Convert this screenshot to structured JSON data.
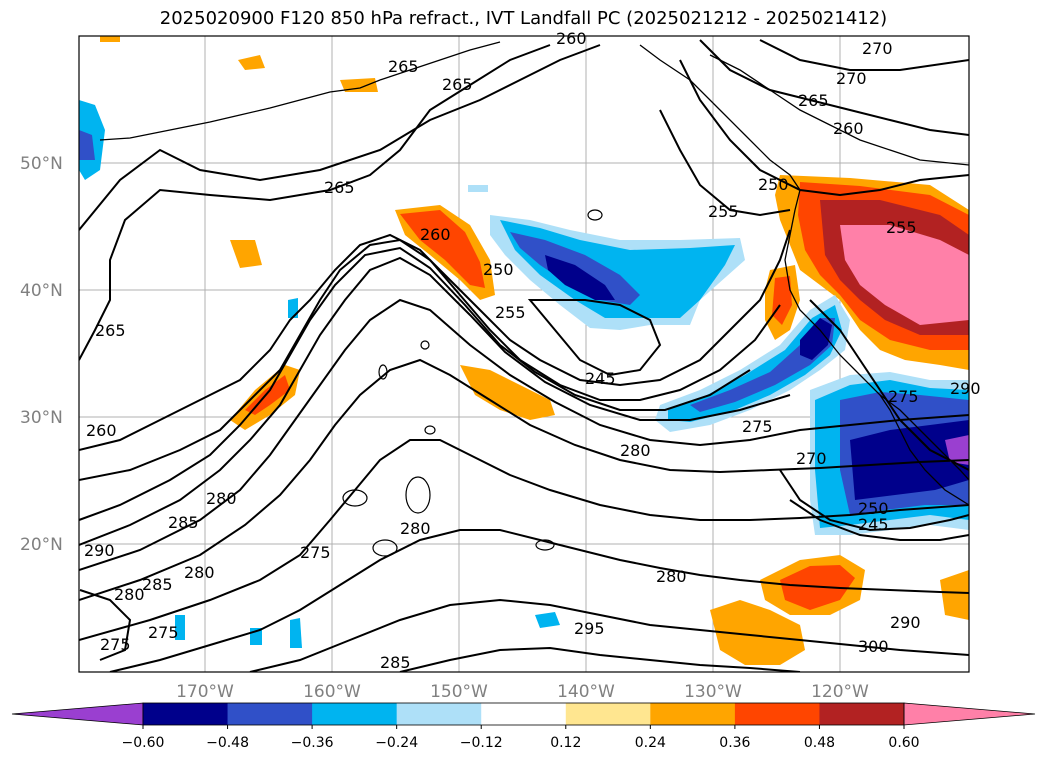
{
  "title": "2025020900 F120 850 hPa refract., IVT Landfall PC (2025021212 - 2025021412)",
  "latitude_labels": [
    "50°N",
    "40°N",
    "30°N",
    "20°N"
  ],
  "longitude_labels": [
    "170°W",
    "160°W",
    "150°W",
    "140°W",
    "130°W",
    "120°W"
  ],
  "contour_labels": [
    "260",
    "265",
    "265",
    "270",
    "270",
    "265",
    "260",
    "265",
    "260",
    "250",
    "255",
    "255",
    "250",
    "255",
    "245",
    "265",
    "260",
    "275",
    "280",
    "275",
    "270",
    "280",
    "280",
    "285",
    "290",
    "285",
    "280",
    "280",
    "275",
    "280",
    "295",
    "290",
    "300",
    "285",
    "275",
    "250",
    "245",
    "275",
    "290"
  ],
  "colorbar": {
    "ticks": [
      "−0.60",
      "−0.48",
      "−0.36",
      "−0.24",
      "−0.12",
      "0.12",
      "0.24",
      "0.36",
      "0.48",
      "0.60"
    ],
    "colors": [
      "#9a3fd0",
      "#00008b",
      "#3050c8",
      "#00b4f0",
      "#aee0f8",
      "#ffffff",
      "#ffe690",
      "#ffa500",
      "#ff4500",
      "#b22222",
      "#ff80a8"
    ]
  }
}
